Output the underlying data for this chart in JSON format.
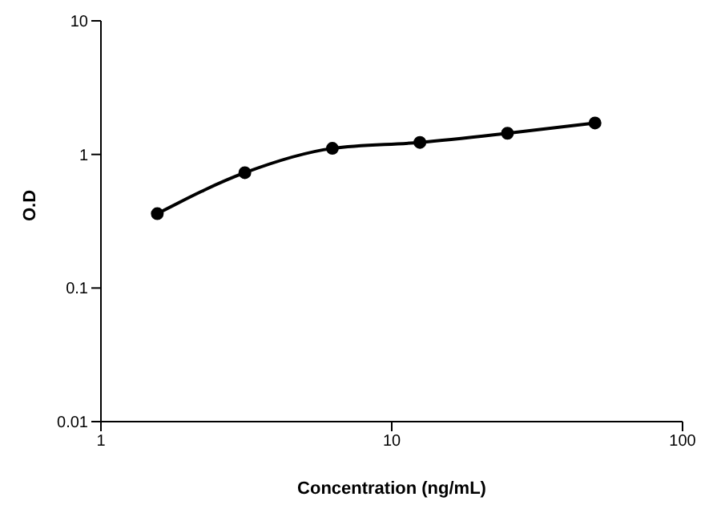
{
  "chart_data": {
    "type": "line",
    "xlabel": "Concentration (ng/mL)",
    "ylabel": "O.D",
    "log": "xy",
    "x": [
      1.5625,
      3.125,
      6.25,
      12.5,
      25,
      50
    ],
    "series": [
      {
        "color": "#000000",
        "values": [
          0.36,
          0.73,
          1.11,
          1.23,
          1.44,
          1.72
        ]
      }
    ],
    "xlim": [
      1,
      100
    ],
    "xticks": [
      1,
      10,
      100
    ],
    "ylim": [
      0.01,
      10
    ],
    "yticks": [
      0.01,
      0.1,
      1,
      10
    ],
    "grid": false,
    "legend": false,
    "marker": "circle",
    "line_style": "solid"
  }
}
